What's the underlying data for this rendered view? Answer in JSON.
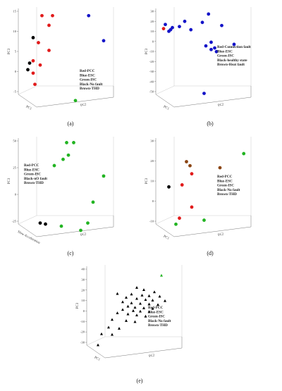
{
  "colors": {
    "red": "#e11b1b",
    "blue": "#1414c8",
    "green": "#22b422",
    "black": "#000000",
    "brown": "#8b4513",
    "frame": "#777777",
    "background": "#ffffff"
  },
  "chart_data": [
    {
      "type": "scatter",
      "caption": "(a)",
      "ylabel": "PC3",
      "xlabel": "PC1",
      "zlabel": "PC2",
      "yticks": [
        "15",
        "10",
        "5",
        "0",
        "-5"
      ],
      "ylim": [
        -5,
        18
      ],
      "legend": [
        "Red-PCC",
        "Blue-ESC",
        "Green-ISC",
        "Black-No fault",
        "Brown-THD"
      ],
      "legend_position": "bottom-right",
      "points": [
        {
          "x": 0.22,
          "y": 16.5,
          "color": "red"
        },
        {
          "x": 0.34,
          "y": 16.5,
          "color": "red"
        },
        {
          "x": 0.3,
          "y": 14.0,
          "color": "red"
        },
        {
          "x": 0.12,
          "y": 10.8,
          "color": "black"
        },
        {
          "x": 0.18,
          "y": 9.5,
          "color": "red"
        },
        {
          "x": 0.3,
          "y": 7.5,
          "color": "red"
        },
        {
          "x": 0.12,
          "y": 4.8,
          "color": "red"
        },
        {
          "x": 0.08,
          "y": 4.2,
          "color": "black"
        },
        {
          "x": 0.2,
          "y": 3.7,
          "color": "red"
        },
        {
          "x": 0.06,
          "y": 2.5,
          "color": "black"
        },
        {
          "x": 0.12,
          "y": 1.6,
          "color": "red"
        },
        {
          "x": 0.14,
          "y": -1.3,
          "color": "red"
        },
        {
          "x": 0.75,
          "y": 16.5,
          "color": "blue"
        },
        {
          "x": 0.92,
          "y": 10.0,
          "color": "blue"
        },
        {
          "x": 0.6,
          "y": -5.5,
          "color": "green"
        }
      ]
    },
    {
      "type": "scatter",
      "caption": "(b)",
      "ylabel": "PC3",
      "xlabel": "PC1",
      "zlabel": "PC2",
      "yticks": [
        "30",
        "20",
        "10",
        "0",
        "-10",
        "-20",
        "-30",
        "-40",
        "-50"
      ],
      "ylim": [
        -50,
        35
      ],
      "legend": [
        "Red-Connection fault",
        "Blue-ESC",
        "Green-ISC",
        "Black-healthy state",
        "Brown-Heat fault"
      ],
      "legend_position": "right",
      "points": [
        {
          "x": 0.55,
          "y": 31.0,
          "color": "blue"
        },
        {
          "x": 0.28,
          "y": 24.0,
          "color": "blue"
        },
        {
          "x": 0.48,
          "y": 23.0,
          "color": "blue"
        },
        {
          "x": 0.06,
          "y": 21.0,
          "color": "blue"
        },
        {
          "x": 0.7,
          "y": 20.0,
          "color": "blue"
        },
        {
          "x": 0.22,
          "y": 19.0,
          "color": "blue"
        },
        {
          "x": 0.14,
          "y": 18.0,
          "color": "blue"
        },
        {
          "x": 0.04,
          "y": 17.0,
          "color": "red"
        },
        {
          "x": 0.12,
          "y": 16.0,
          "color": "blue"
        },
        {
          "x": 0.1,
          "y": 14.5,
          "color": "blue"
        },
        {
          "x": 0.35,
          "y": 16.0,
          "color": "blue"
        },
        {
          "x": 0.58,
          "y": 4.0,
          "color": "blue"
        },
        {
          "x": 0.84,
          "y": 2.0,
          "color": "blue"
        },
        {
          "x": 0.52,
          "y": 0.5,
          "color": "blue"
        },
        {
          "x": 0.62,
          "y": -1.5,
          "color": "blue"
        },
        {
          "x": 0.58,
          "y": -3.0,
          "color": "blue"
        },
        {
          "x": 0.64,
          "y": -5.0,
          "color": "blue"
        },
        {
          "x": 0.5,
          "y": -45.0,
          "color": "blue"
        }
      ]
    },
    {
      "type": "scatter",
      "caption": "(c)",
      "ylabel": "PC3",
      "xlabel": "Slow Acceleration",
      "zlabel": "PC2",
      "yticks": [
        "50",
        "25",
        "0",
        "-25"
      ],
      "ylim": [
        -30,
        55
      ],
      "legend": [
        "Red-PCC",
        "Blue-ESC",
        "Green-ISC",
        "Black-nO fault",
        "Brown-THD"
      ],
      "legend_position": "left",
      "points": [
        {
          "x": 0.5,
          "y": 52.0,
          "color": "green"
        },
        {
          "x": 0.58,
          "y": 52.0,
          "color": "green"
        },
        {
          "x": 0.52,
          "y": 40.0,
          "color": "green"
        },
        {
          "x": 0.46,
          "y": 36.0,
          "color": "green"
        },
        {
          "x": 0.92,
          "y": 20.0,
          "color": "green"
        },
        {
          "x": 0.36,
          "y": 30.0,
          "color": "green"
        },
        {
          "x": 0.8,
          "y": -5.0,
          "color": "green"
        },
        {
          "x": 0.2,
          "y": -25.0,
          "color": "black"
        },
        {
          "x": 0.26,
          "y": -26.0,
          "color": "black"
        },
        {
          "x": 0.74,
          "y": -25.0,
          "color": "green"
        },
        {
          "x": 0.44,
          "y": -28.0,
          "color": "green"
        },
        {
          "x": 0.66,
          "y": -32.0,
          "color": "green"
        }
      ]
    },
    {
      "type": "scatter",
      "caption": "(d)",
      "ylabel": "PC3",
      "xlabel": "PC1",
      "zlabel": "PC2",
      "yticks": [
        "30",
        "20",
        "10",
        "0",
        "-10"
      ],
      "ylim": [
        -12,
        32
      ],
      "legend": [
        "Red-PCC",
        "Blue-ESC",
        "Green-ISC",
        "Black-No fault",
        "Brown-THD"
      ],
      "legend_position": "right",
      "points": [
        {
          "x": 0.3,
          "y": 21.0,
          "color": "brown"
        },
        {
          "x": 0.34,
          "y": 19.0,
          "color": "brown"
        },
        {
          "x": 0.68,
          "y": 18.0,
          "color": "brown"
        },
        {
          "x": 0.95,
          "y": 25.0,
          "color": "green"
        },
        {
          "x": 0.36,
          "y": 15.0,
          "color": "red"
        },
        {
          "x": 0.1,
          "y": 8.5,
          "color": "black"
        },
        {
          "x": 0.25,
          "y": 9.5,
          "color": "red"
        },
        {
          "x": 0.36,
          "y": -1.5,
          "color": "red"
        },
        {
          "x": 0.22,
          "y": -7.0,
          "color": "red"
        },
        {
          "x": 0.5,
          "y": -8.0,
          "color": "green"
        },
        {
          "x": 0.18,
          "y": -10.0,
          "color": "green"
        }
      ]
    },
    {
      "type": "scatter",
      "caption": "(e)",
      "ylabel": "PC3",
      "xlabel": "PC1",
      "zlabel": "PC2",
      "yticks": [
        "40",
        "30",
        "20",
        "10",
        "0",
        "-10",
        "-20",
        "-30"
      ],
      "ylim": [
        -32,
        42
      ],
      "legend": [
        "Red-PCC",
        "Blue-ESC",
        "Green-ISC",
        "Black-No fault",
        "Brown-THD"
      ],
      "legend_position": "right",
      "points": [
        {
          "x": 0.8,
          "y": 35.0,
          "color": "green"
        },
        {
          "x": 0.52,
          "y": 24.0,
          "color": "black"
        },
        {
          "x": 0.6,
          "y": 22.0,
          "color": "black"
        },
        {
          "x": 0.72,
          "y": 20.0,
          "color": "black"
        },
        {
          "x": 0.3,
          "y": 18.5,
          "color": "black"
        },
        {
          "x": 0.46,
          "y": 18.0,
          "color": "black"
        },
        {
          "x": 0.58,
          "y": 17.0,
          "color": "black"
        },
        {
          "x": 0.66,
          "y": 16.5,
          "color": "black"
        },
        {
          "x": 0.78,
          "y": 16.0,
          "color": "black"
        },
        {
          "x": 0.4,
          "y": 15.0,
          "color": "black"
        },
        {
          "x": 0.52,
          "y": 14.0,
          "color": "black"
        },
        {
          "x": 0.62,
          "y": 13.0,
          "color": "black"
        },
        {
          "x": 0.7,
          "y": 12.5,
          "color": "black"
        },
        {
          "x": 0.84,
          "y": 12.0,
          "color": "black"
        },
        {
          "x": 0.36,
          "y": 11.0,
          "color": "black"
        },
        {
          "x": 0.46,
          "y": 10.0,
          "color": "black"
        },
        {
          "x": 0.56,
          "y": 9.5,
          "color": "black"
        },
        {
          "x": 0.66,
          "y": 9.0,
          "color": "black"
        },
        {
          "x": 0.76,
          "y": 8.5,
          "color": "black"
        },
        {
          "x": 0.42,
          "y": 7.0,
          "color": "black"
        },
        {
          "x": 0.5,
          "y": 6.0,
          "color": "black"
        },
        {
          "x": 0.6,
          "y": 5.5,
          "color": "black"
        },
        {
          "x": 0.7,
          "y": 5.0,
          "color": "black"
        },
        {
          "x": 0.36,
          "y": 4.0,
          "color": "black"
        },
        {
          "x": 0.48,
          "y": 3.0,
          "color": "black"
        },
        {
          "x": 0.56,
          "y": 2.5,
          "color": "black"
        },
        {
          "x": 0.66,
          "y": 2.0,
          "color": "black"
        },
        {
          "x": 0.3,
          "y": 1.0,
          "color": "black"
        },
        {
          "x": 0.42,
          "y": 0.0,
          "color": "black"
        },
        {
          "x": 0.52,
          "y": -1.0,
          "color": "black"
        },
        {
          "x": 0.62,
          "y": -2.0,
          "color": "black"
        },
        {
          "x": 0.24,
          "y": -5.0,
          "color": "black"
        },
        {
          "x": 0.4,
          "y": -6.0,
          "color": "black"
        },
        {
          "x": 0.5,
          "y": -7.0,
          "color": "black"
        },
        {
          "x": 0.2,
          "y": -12.0,
          "color": "black"
        },
        {
          "x": 0.32,
          "y": -13.0,
          "color": "black"
        },
        {
          "x": 0.12,
          "y": -18.0,
          "color": "black"
        },
        {
          "x": 0.24,
          "y": -18.5,
          "color": "black"
        },
        {
          "x": 0.08,
          "y": -28.0,
          "color": "black"
        }
      ]
    }
  ]
}
